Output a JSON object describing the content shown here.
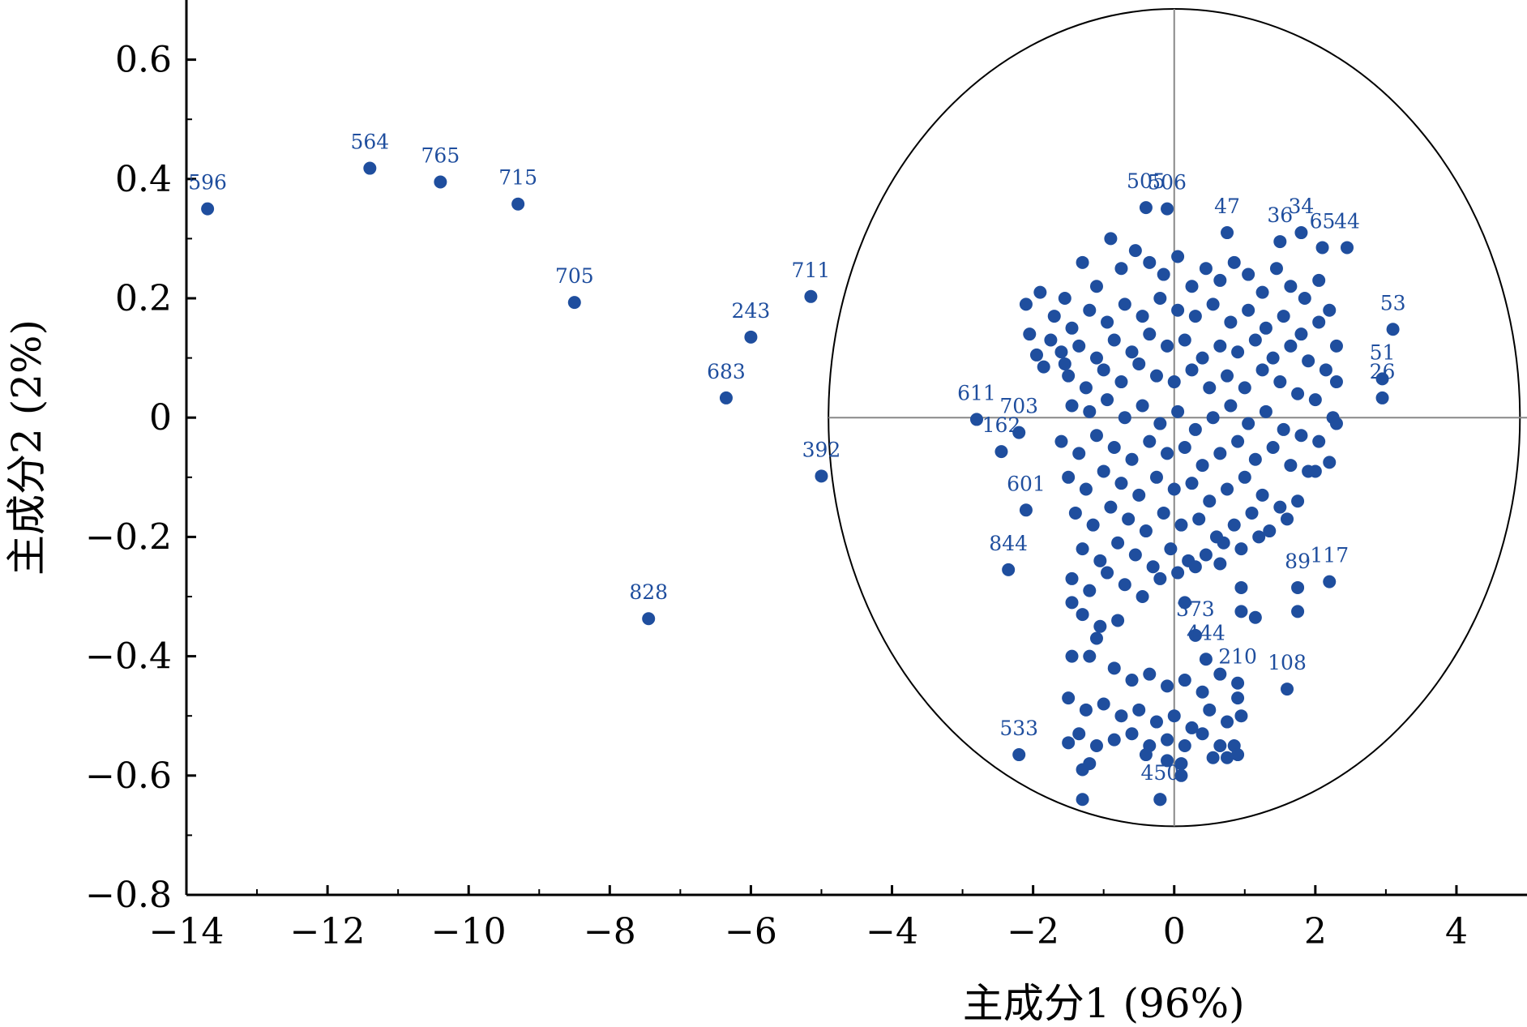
{
  "chart_data": {
    "type": "scatter",
    "xlabel": "主成分1 (96%)",
    "ylabel": "主成分2 (2%)",
    "xlim": [
      -14,
      5
    ],
    "ylim": [
      -0.8,
      0.7
    ],
    "xticks": [
      "−14",
      "−12",
      "−10",
      "−8",
      "−6",
      "−4",
      "−2",
      "0",
      "2",
      "4"
    ],
    "yticks": [
      "−0.8",
      "−0.6",
      "−0.4",
      "−0.2",
      "0",
      "0.2",
      "0.4",
      "0.6"
    ],
    "marker_color": "#1f4e9e",
    "ellipse": {
      "cx": 0,
      "cy": 0,
      "rx": 4.9,
      "ry": 0.685
    },
    "labeled_points": [
      {
        "id": "596",
        "x": -13.7,
        "y": 0.35
      },
      {
        "id": "564",
        "x": -11.4,
        "y": 0.418
      },
      {
        "id": "765",
        "x": -10.4,
        "y": 0.395
      },
      {
        "id": "715",
        "x": -9.3,
        "y": 0.358
      },
      {
        "id": "705",
        "x": -8.5,
        "y": 0.193
      },
      {
        "id": "711",
        "x": -5.15,
        "y": 0.203
      },
      {
        "id": "243",
        "x": -6.0,
        "y": 0.135
      },
      {
        "id": "683",
        "x": -6.35,
        "y": 0.033
      },
      {
        "id": "392",
        "x": -5.0,
        "y": -0.098
      },
      {
        "id": "828",
        "x": -7.45,
        "y": -0.337
      },
      {
        "id": "611",
        "x": -2.8,
        "y": -0.003
      },
      {
        "id": "703",
        "x": -2.2,
        "y": -0.025
      },
      {
        "id": "162",
        "x": -2.45,
        "y": -0.057
      },
      {
        "id": "601",
        "x": -2.1,
        "y": -0.155
      },
      {
        "id": "844",
        "x": -2.35,
        "y": -0.255
      },
      {
        "id": "533",
        "x": -2.2,
        "y": -0.565
      },
      {
        "id": "53",
        "x": 3.1,
        "y": 0.148
      },
      {
        "id": "51",
        "x": 2.95,
        "y": 0.065
      },
      {
        "id": "26",
        "x": 2.95,
        "y": 0.033
      },
      {
        "id": "44",
        "x": 2.45,
        "y": 0.285
      },
      {
        "id": "65",
        "x": 2.1,
        "y": 0.285
      },
      {
        "id": "34",
        "x": 1.8,
        "y": 0.31
      },
      {
        "id": "36",
        "x": 1.5,
        "y": 0.295
      },
      {
        "id": "47",
        "x": 0.75,
        "y": 0.31
      },
      {
        "id": "117",
        "x": 2.2,
        "y": -0.275
      },
      {
        "id": "89",
        "x": 1.75,
        "y": -0.285
      },
      {
        "id": "108",
        "x": 1.6,
        "y": -0.455
      },
      {
        "id": "373",
        "x": 0.3,
        "y": -0.365
      },
      {
        "id": "444",
        "x": 0.45,
        "y": -0.405
      },
      {
        "id": "210",
        "x": 0.9,
        "y": -0.445
      },
      {
        "id": "450",
        "x": -0.2,
        "y": -0.64
      },
      {
        "id": "505",
        "x": -0.4,
        "y": 0.352
      },
      {
        "id": "506",
        "x": -0.1,
        "y": 0.35
      }
    ],
    "cluster_points": [
      [
        -1.55,
        0.2
      ],
      [
        -1.3,
        0.26
      ],
      [
        -1.1,
        0.22
      ],
      [
        -0.9,
        0.3
      ],
      [
        -0.75,
        0.25
      ],
      [
        -0.55,
        0.28
      ],
      [
        -0.35,
        0.26
      ],
      [
        -0.15,
        0.24
      ],
      [
        0.05,
        0.27
      ],
      [
        0.25,
        0.22
      ],
      [
        0.45,
        0.25
      ],
      [
        0.65,
        0.23
      ],
      [
        0.85,
        0.26
      ],
      [
        1.05,
        0.24
      ],
      [
        1.25,
        0.21
      ],
      [
        1.45,
        0.25
      ],
      [
        1.65,
        0.22
      ],
      [
        1.85,
        0.2
      ],
      [
        2.05,
        0.23
      ],
      [
        2.2,
        0.18
      ],
      [
        -1.7,
        0.17
      ],
      [
        -1.45,
        0.15
      ],
      [
        -1.2,
        0.18
      ],
      [
        -0.95,
        0.16
      ],
      [
        -0.7,
        0.19
      ],
      [
        -0.45,
        0.17
      ],
      [
        -0.2,
        0.2
      ],
      [
        0.05,
        0.18
      ],
      [
        0.3,
        0.17
      ],
      [
        0.55,
        0.19
      ],
      [
        0.8,
        0.16
      ],
      [
        1.05,
        0.18
      ],
      [
        1.3,
        0.15
      ],
      [
        1.55,
        0.17
      ],
      [
        1.8,
        0.14
      ],
      [
        2.05,
        0.16
      ],
      [
        2.3,
        0.12
      ],
      [
        -1.9,
        0.21
      ],
      [
        -2.1,
        0.19
      ],
      [
        -2.05,
        0.14
      ],
      [
        -1.95,
        0.105
      ],
      [
        -1.85,
        0.085
      ],
      [
        -1.75,
        0.13
      ],
      [
        -1.6,
        0.11
      ],
      [
        -1.35,
        0.12
      ],
      [
        -1.1,
        0.1
      ],
      [
        -0.85,
        0.13
      ],
      [
        -0.6,
        0.11
      ],
      [
        -0.35,
        0.14
      ],
      [
        -0.1,
        0.12
      ],
      [
        0.15,
        0.13
      ],
      [
        0.4,
        0.1
      ],
      [
        0.65,
        0.12
      ],
      [
        0.9,
        0.11
      ],
      [
        1.15,
        0.13
      ],
      [
        1.4,
        0.1
      ],
      [
        1.65,
        0.12
      ],
      [
        1.9,
        0.095
      ],
      [
        2.15,
        0.08
      ],
      [
        2.3,
        0.06
      ],
      [
        -1.5,
        0.07
      ],
      [
        -1.25,
        0.05
      ],
      [
        -1.0,
        0.08
      ],
      [
        -0.75,
        0.06
      ],
      [
        -0.5,
        0.09
      ],
      [
        -0.25,
        0.07
      ],
      [
        0.0,
        0.06
      ],
      [
        0.25,
        0.08
      ],
      [
        0.5,
        0.05
      ],
      [
        0.75,
        0.07
      ],
      [
        1.0,
        0.05
      ],
      [
        1.25,
        0.08
      ],
      [
        1.5,
        0.06
      ],
      [
        1.75,
        0.04
      ],
      [
        2.0,
        0.03
      ],
      [
        2.25,
        0.0
      ],
      [
        2.3,
        -0.01
      ],
      [
        -1.45,
        0.02
      ],
      [
        -1.2,
        0.01
      ],
      [
        -0.95,
        0.03
      ],
      [
        -0.7,
        0.0
      ],
      [
        -0.45,
        0.02
      ],
      [
        -0.2,
        -0.01
      ],
      [
        0.05,
        0.01
      ],
      [
        0.3,
        -0.02
      ],
      [
        0.55,
        0.0
      ],
      [
        0.8,
        0.02
      ],
      [
        1.05,
        -0.01
      ],
      [
        1.3,
        0.01
      ],
      [
        1.55,
        -0.02
      ],
      [
        1.8,
        -0.03
      ],
      [
        2.05,
        -0.04
      ],
      [
        -1.6,
        -0.04
      ],
      [
        -1.35,
        -0.06
      ],
      [
        -1.1,
        -0.03
      ],
      [
        -0.85,
        -0.05
      ],
      [
        -0.6,
        -0.07
      ],
      [
        -0.35,
        -0.04
      ],
      [
        -0.1,
        -0.06
      ],
      [
        0.15,
        -0.05
      ],
      [
        0.4,
        -0.08
      ],
      [
        0.65,
        -0.06
      ],
      [
        0.9,
        -0.04
      ],
      [
        1.15,
        -0.07
      ],
      [
        1.4,
        -0.05
      ],
      [
        1.65,
        -0.08
      ],
      [
        1.9,
        -0.09
      ],
      [
        2.2,
        -0.075
      ],
      [
        2.0,
        -0.09
      ],
      [
        -1.5,
        -0.1
      ],
      [
        -1.25,
        -0.12
      ],
      [
        -1.0,
        -0.09
      ],
      [
        -0.75,
        -0.11
      ],
      [
        -0.5,
        -0.13
      ],
      [
        -0.25,
        -0.1
      ],
      [
        0.0,
        -0.12
      ],
      [
        0.25,
        -0.11
      ],
      [
        0.5,
        -0.14
      ],
      [
        0.75,
        -0.12
      ],
      [
        1.0,
        -0.1
      ],
      [
        1.25,
        -0.13
      ],
      [
        1.5,
        -0.15
      ],
      [
        1.75,
        -0.14
      ],
      [
        -1.4,
        -0.16
      ],
      [
        -1.15,
        -0.18
      ],
      [
        -0.9,
        -0.15
      ],
      [
        -0.65,
        -0.17
      ],
      [
        -0.4,
        -0.19
      ],
      [
        -0.15,
        -0.16
      ],
      [
        0.1,
        -0.18
      ],
      [
        0.35,
        -0.17
      ],
      [
        0.6,
        -0.2
      ],
      [
        0.85,
        -0.18
      ],
      [
        1.1,
        -0.16
      ],
      [
        1.35,
        -0.19
      ],
      [
        1.6,
        -0.17
      ],
      [
        -1.3,
        -0.22
      ],
      [
        -1.05,
        -0.24
      ],
      [
        -0.8,
        -0.21
      ],
      [
        -0.55,
        -0.23
      ],
      [
        -0.3,
        -0.25
      ],
      [
        -0.05,
        -0.22
      ],
      [
        0.2,
        -0.24
      ],
      [
        0.45,
        -0.23
      ],
      [
        0.7,
        -0.21
      ],
      [
        0.95,
        -0.22
      ],
      [
        1.2,
        -0.2
      ],
      [
        -1.45,
        -0.27
      ],
      [
        -1.2,
        -0.29
      ],
      [
        -0.95,
        -0.26
      ],
      [
        -0.7,
        -0.28
      ],
      [
        -0.45,
        -0.3
      ],
      [
        -0.2,
        -0.27
      ],
      [
        0.05,
        -0.26
      ],
      [
        0.3,
        -0.25
      ],
      [
        0.65,
        -0.245
      ],
      [
        0.95,
        -0.285
      ],
      [
        1.15,
        -0.335
      ],
      [
        0.95,
        -0.325
      ],
      [
        -1.45,
        -0.31
      ],
      [
        -1.3,
        -0.33
      ],
      [
        -1.05,
        -0.35
      ],
      [
        -0.8,
        -0.34
      ],
      [
        -1.1,
        -0.37
      ],
      [
        -1.45,
        -0.4
      ],
      [
        -1.2,
        -0.4
      ],
      [
        -0.85,
        -0.42
      ],
      [
        -0.6,
        -0.44
      ],
      [
        -0.35,
        -0.43
      ],
      [
        -0.1,
        -0.45
      ],
      [
        0.15,
        -0.44
      ],
      [
        0.4,
        -0.46
      ],
      [
        0.65,
        -0.43
      ],
      [
        0.9,
        -0.47
      ],
      [
        -1.5,
        -0.47
      ],
      [
        -1.25,
        -0.49
      ],
      [
        -1.0,
        -0.48
      ],
      [
        -0.75,
        -0.5
      ],
      [
        -0.5,
        -0.49
      ],
      [
        -0.25,
        -0.51
      ],
      [
        0.0,
        -0.5
      ],
      [
        0.25,
        -0.52
      ],
      [
        0.5,
        -0.49
      ],
      [
        0.75,
        -0.51
      ],
      [
        0.95,
        -0.5
      ],
      [
        -1.35,
        -0.53
      ],
      [
        -1.1,
        -0.55
      ],
      [
        -0.85,
        -0.54
      ],
      [
        -0.6,
        -0.53
      ],
      [
        -0.35,
        -0.55
      ],
      [
        -0.1,
        -0.54
      ],
      [
        0.15,
        -0.55
      ],
      [
        0.4,
        -0.53
      ],
      [
        0.65,
        -0.55
      ],
      [
        0.85,
        -0.55
      ],
      [
        -1.5,
        -0.545
      ],
      [
        -1.2,
        -0.58
      ],
      [
        -1.3,
        -0.59
      ],
      [
        -0.4,
        -0.565
      ],
      [
        -0.1,
        -0.575
      ],
      [
        0.1,
        -0.58
      ],
      [
        0.55,
        -0.57
      ],
      [
        0.75,
        -0.57
      ],
      [
        0.9,
        -0.565
      ],
      [
        0.1,
        -0.6
      ],
      [
        -1.3,
        -0.64
      ],
      [
        -0.2,
        -0.64
      ],
      [
        -1.55,
        0.09
      ],
      [
        1.75,
        -0.325
      ],
      [
        0.15,
        -0.31
      ]
    ]
  }
}
